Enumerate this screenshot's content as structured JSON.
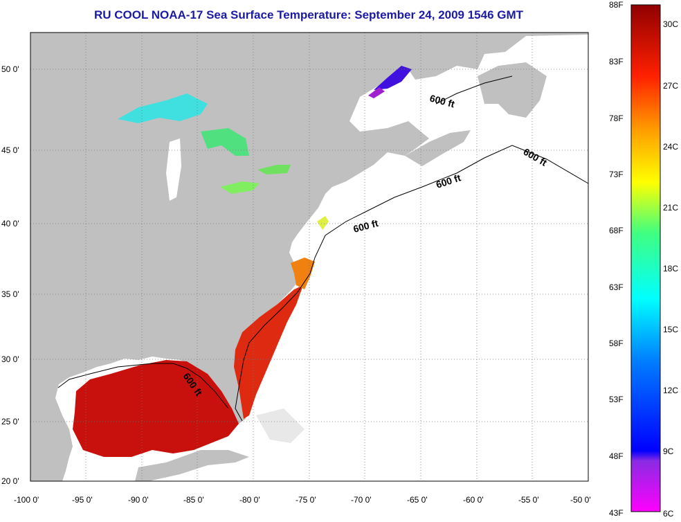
{
  "title": "RU COOL  NOAA-17  Sea Surface Temperature:  September 24, 2009 1546 GMT",
  "axes": {
    "x_ticks": [
      "-100 0'",
      "-95 0'",
      "-90 0'",
      "-85 0'",
      "-80 0'",
      "-75 0'",
      "-70 0'",
      "-65 0'",
      "-60 0'",
      "-55 0'",
      "-50 0'"
    ],
    "y_ticks": [
      "50 0'",
      "45 0'",
      "40 0'",
      "35 0'",
      "30 0'",
      "25 0'",
      "20 0'"
    ]
  },
  "contour_labels": [
    "600 ft",
    "600 ft",
    "600 ft",
    "600 ft",
    "600 ft"
  ],
  "colorbar": {
    "fahrenheit": [
      "88F",
      "83F",
      "78F",
      "73F",
      "68F",
      "63F",
      "58F",
      "53F",
      "48F",
      "43F"
    ],
    "celsius": [
      "30C",
      "27C",
      "24C",
      "21C",
      "18C",
      "15C",
      "12C",
      "9C",
      "6C"
    ]
  },
  "colors": {
    "land": "#c0c0c0",
    "ocean": "#ffffff",
    "title": "#1a1aa6",
    "warm_sst": "#c8100c",
    "hot_sst": "#e83a10"
  }
}
